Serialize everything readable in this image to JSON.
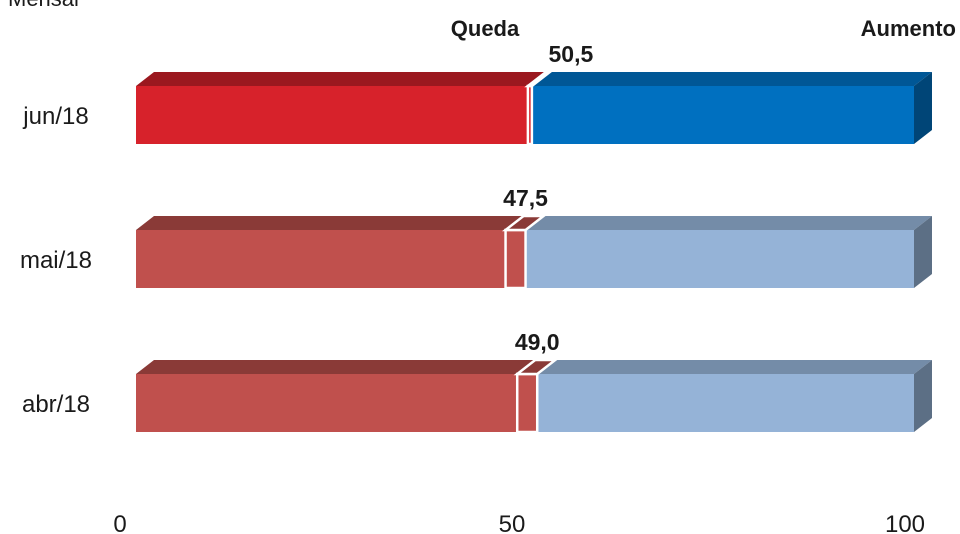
{
  "chart_data": {
    "type": "bar",
    "orientation": "horizontal",
    "stacked": true,
    "three_d": true,
    "corner_text": "Mensal",
    "categories": [
      "jun/18",
      "mai/18",
      "abr/18"
    ],
    "marker_values": [
      50.5,
      47.5,
      49.0
    ],
    "value_labels": [
      "50,5",
      "47,5",
      "49,0"
    ],
    "series": [
      {
        "name": "Queda"
      },
      {
        "name": "Aumento"
      }
    ],
    "highlight_category": "jun/18",
    "colors": {
      "highlight_left": "#d7222b",
      "highlight_right": "#0070c0",
      "normal_left": "#c0504d",
      "normal_right": "#95b3d7"
    },
    "x_ticks": [
      "0",
      "50",
      "100"
    ],
    "xlim": [
      0,
      100
    ],
    "grid": false
  }
}
